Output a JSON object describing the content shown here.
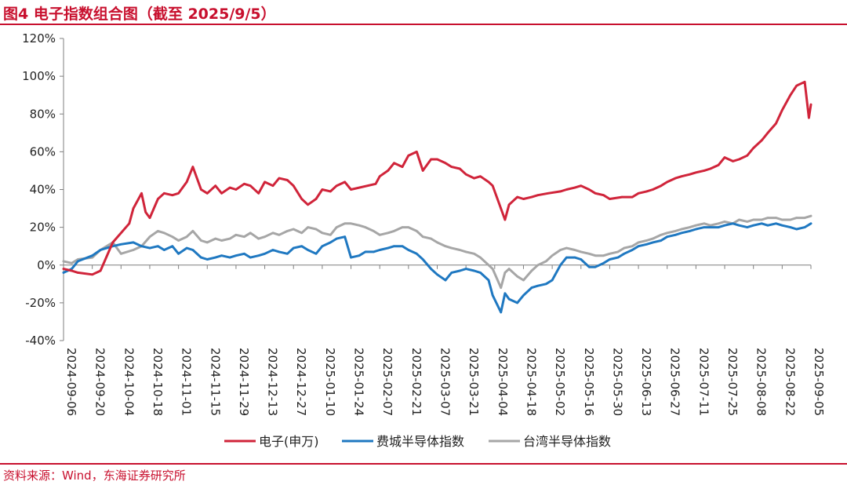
{
  "figure": {
    "title": "图4  电子指数组合图（截至 2025/9/5）",
    "source": "资料来源：Wind，东海证券研究所"
  },
  "colors": {
    "accent": "#c8102e",
    "electronics": "#d0243a",
    "sox": "#1f78c1",
    "taiwan": "#a6a6a6"
  },
  "chart_data": {
    "type": "line",
    "title": "电子指数组合图",
    "xlabel": "",
    "ylabel": "",
    "ylim": [
      -40,
      120
    ],
    "y_ticks": [
      "120%",
      "100%",
      "80%",
      "60%",
      "40%",
      "20%",
      "0%",
      "-20%",
      "-40%"
    ],
    "y_tick_values": [
      120,
      100,
      80,
      60,
      40,
      20,
      0,
      -20,
      -40
    ],
    "x_ticks": [
      "2024-09-06",
      "2024-09-20",
      "2024-10-04",
      "2024-10-18",
      "2024-11-01",
      "2024-11-15",
      "2024-11-29",
      "2024-12-13",
      "2024-12-27",
      "2025-01-10",
      "2025-01-24",
      "2025-02-07",
      "2025-02-21",
      "2025-03-07",
      "2025-03-21",
      "2025-04-04",
      "2025-04-18",
      "2025-05-02",
      "2025-05-16",
      "2025-05-30",
      "2025-06-13",
      "2025-06-27",
      "2025-07-11",
      "2025-07-25",
      "2025-08-08",
      "2025-08-22",
      "2025-09-05"
    ],
    "grid": false,
    "legend_position": "bottom",
    "series": [
      {
        "name": "电子(申万)",
        "color": "#d0243a",
        "x": [
          "2024-09-06",
          "2024-09-10",
          "2024-09-13",
          "2024-09-20",
          "2024-09-24",
          "2024-09-30",
          "2024-10-08",
          "2024-10-10",
          "2024-10-14",
          "2024-10-16",
          "2024-10-18",
          "2024-10-22",
          "2024-10-25",
          "2024-10-29",
          "2024-11-01",
          "2024-11-05",
          "2024-11-08",
          "2024-11-12",
          "2024-11-15",
          "2024-11-19",
          "2024-11-22",
          "2024-11-26",
          "2024-11-29",
          "2024-12-03",
          "2024-12-06",
          "2024-12-10",
          "2024-12-13",
          "2024-12-17",
          "2024-12-20",
          "2024-12-24",
          "2024-12-27",
          "2024-12-31",
          "2025-01-03",
          "2025-01-07",
          "2025-01-10",
          "2025-01-14",
          "2025-01-17",
          "2025-01-21",
          "2025-01-24",
          "2025-02-05",
          "2025-02-07",
          "2025-02-11",
          "2025-02-14",
          "2025-02-18",
          "2025-02-21",
          "2025-02-25",
          "2025-02-28",
          "2025-03-04",
          "2025-03-07",
          "2025-03-11",
          "2025-03-14",
          "2025-03-18",
          "2025-03-21",
          "2025-03-25",
          "2025-03-28",
          "2025-04-01",
          "2025-04-03",
          "2025-04-07",
          "2025-04-09",
          "2025-04-11",
          "2025-04-15",
          "2025-04-18",
          "2025-04-22",
          "2025-04-25",
          "2025-04-30",
          "2025-05-06",
          "2025-05-09",
          "2025-05-13",
          "2025-05-16",
          "2025-05-20",
          "2025-05-23",
          "2025-05-27",
          "2025-05-30",
          "2025-06-05",
          "2025-06-10",
          "2025-06-13",
          "2025-06-17",
          "2025-06-20",
          "2025-06-24",
          "2025-06-27",
          "2025-07-01",
          "2025-07-04",
          "2025-07-08",
          "2025-07-11",
          "2025-07-15",
          "2025-07-18",
          "2025-07-22",
          "2025-07-25",
          "2025-07-29",
          "2025-08-01",
          "2025-08-05",
          "2025-08-08",
          "2025-08-12",
          "2025-08-15",
          "2025-08-19",
          "2025-08-22",
          "2025-08-26",
          "2025-08-29",
          "2025-09-02",
          "2025-09-04",
          "2025-09-05"
        ],
        "values": [
          -2,
          -3,
          -4,
          -5,
          -3,
          12,
          22,
          30,
          38,
          28,
          25,
          35,
          38,
          37,
          38,
          44,
          52,
          40,
          38,
          42,
          38,
          41,
          40,
          43,
          42,
          38,
          44,
          42,
          46,
          45,
          42,
          35,
          32,
          35,
          40,
          39,
          42,
          44,
          40,
          43,
          47,
          50,
          54,
          52,
          58,
          60,
          50,
          56,
          56,
          54,
          52,
          51,
          48,
          46,
          47,
          44,
          42,
          30,
          24,
          32,
          36,
          35,
          36,
          37,
          38,
          39,
          40,
          41,
          42,
          40,
          38,
          37,
          35,
          36,
          36,
          38,
          39,
          40,
          42,
          44,
          46,
          47,
          48,
          49,
          50,
          51,
          53,
          57,
          55,
          56,
          58,
          62,
          66,
          70,
          75,
          82,
          90,
          95,
          97,
          78,
          85
        ]
      },
      {
        "name": "费城半导体指数",
        "color": "#1f78c1",
        "x": [
          "2024-09-06",
          "2024-09-10",
          "2024-09-13",
          "2024-09-20",
          "2024-09-24",
          "2024-09-30",
          "2024-10-04",
          "2024-10-10",
          "2024-10-14",
          "2024-10-18",
          "2024-10-22",
          "2024-10-25",
          "2024-10-29",
          "2024-11-01",
          "2024-11-05",
          "2024-11-08",
          "2024-11-12",
          "2024-11-15",
          "2024-11-19",
          "2024-11-22",
          "2024-11-26",
          "2024-11-29",
          "2024-12-03",
          "2024-12-06",
          "2024-12-10",
          "2024-12-13",
          "2024-12-17",
          "2024-12-20",
          "2024-12-24",
          "2024-12-27",
          "2024-12-31",
          "2025-01-03",
          "2025-01-07",
          "2025-01-10",
          "2025-01-14",
          "2025-01-17",
          "2025-01-21",
          "2025-01-24",
          "2025-01-28",
          "2025-01-31",
          "2025-02-04",
          "2025-02-07",
          "2025-02-11",
          "2025-02-14",
          "2025-02-18",
          "2025-02-21",
          "2025-02-25",
          "2025-02-28",
          "2025-03-04",
          "2025-03-07",
          "2025-03-11",
          "2025-03-14",
          "2025-03-18",
          "2025-03-21",
          "2025-03-25",
          "2025-03-28",
          "2025-04-01",
          "2025-04-03",
          "2025-04-07",
          "2025-04-09",
          "2025-04-11",
          "2025-04-15",
          "2025-04-18",
          "2025-04-22",
          "2025-04-25",
          "2025-04-29",
          "2025-05-02",
          "2025-05-06",
          "2025-05-09",
          "2025-05-13",
          "2025-05-16",
          "2025-05-20",
          "2025-05-23",
          "2025-05-27",
          "2025-05-30",
          "2025-06-03",
          "2025-06-06",
          "2025-06-10",
          "2025-06-13",
          "2025-06-17",
          "2025-06-20",
          "2025-06-24",
          "2025-06-27",
          "2025-07-01",
          "2025-07-04",
          "2025-07-08",
          "2025-07-11",
          "2025-07-15",
          "2025-07-18",
          "2025-07-22",
          "2025-07-25",
          "2025-07-29",
          "2025-08-01",
          "2025-08-05",
          "2025-08-08",
          "2025-08-12",
          "2025-08-15",
          "2025-08-19",
          "2025-08-22",
          "2025-08-26",
          "2025-08-29",
          "2025-09-02",
          "2025-09-05"
        ],
        "values": [
          -4,
          -2,
          2,
          5,
          8,
          10,
          11,
          12,
          10,
          9,
          10,
          8,
          10,
          6,
          9,
          8,
          4,
          3,
          4,
          5,
          4,
          5,
          6,
          4,
          5,
          6,
          8,
          7,
          6,
          9,
          10,
          8,
          6,
          10,
          12,
          14,
          15,
          4,
          5,
          7,
          7,
          8,
          9,
          10,
          10,
          8,
          6,
          3,
          -2,
          -5,
          -8,
          -4,
          -3,
          -2,
          -3,
          -4,
          -8,
          -16,
          -25,
          -15,
          -18,
          -20,
          -16,
          -12,
          -11,
          -10,
          -8,
          0,
          4,
          4,
          3,
          -1,
          -1,
          1,
          3,
          4,
          6,
          8,
          10,
          11,
          12,
          13,
          15,
          16,
          17,
          18,
          19,
          20,
          20,
          20,
          21,
          22,
          21,
          20,
          21,
          22,
          21,
          22,
          21,
          20,
          19,
          20,
          22
        ]
      },
      {
        "name": "台湾半导体指数",
        "color": "#a6a6a6",
        "x": [
          "2024-09-06",
          "2024-09-10",
          "2024-09-13",
          "2024-09-20",
          "2024-09-24",
          "2024-09-30",
          "2024-10-04",
          "2024-10-10",
          "2024-10-14",
          "2024-10-18",
          "2024-10-22",
          "2024-10-25",
          "2024-10-29",
          "2024-11-01",
          "2024-11-05",
          "2024-11-08",
          "2024-11-12",
          "2024-11-15",
          "2024-11-19",
          "2024-11-22",
          "2024-11-26",
          "2024-11-29",
          "2024-12-03",
          "2024-12-06",
          "2024-12-10",
          "2024-12-13",
          "2024-12-17",
          "2024-12-20",
          "2024-12-24",
          "2024-12-27",
          "2024-12-31",
          "2025-01-03",
          "2025-01-07",
          "2025-01-10",
          "2025-01-14",
          "2025-01-17",
          "2025-01-21",
          "2025-01-24",
          "2025-01-28",
          "2025-01-31",
          "2025-02-04",
          "2025-02-07",
          "2025-02-11",
          "2025-02-14",
          "2025-02-18",
          "2025-02-21",
          "2025-02-25",
          "2025-02-28",
          "2025-03-04",
          "2025-03-07",
          "2025-03-11",
          "2025-03-14",
          "2025-03-18",
          "2025-03-21",
          "2025-03-25",
          "2025-03-28",
          "2025-04-01",
          "2025-04-03",
          "2025-04-07",
          "2025-04-09",
          "2025-04-11",
          "2025-04-15",
          "2025-04-18",
          "2025-04-22",
          "2025-04-25",
          "2025-04-29",
          "2025-05-02",
          "2025-05-06",
          "2025-05-09",
          "2025-05-13",
          "2025-05-16",
          "2025-05-20",
          "2025-05-23",
          "2025-05-27",
          "2025-05-30",
          "2025-06-03",
          "2025-06-06",
          "2025-06-10",
          "2025-06-13",
          "2025-06-17",
          "2025-06-20",
          "2025-06-24",
          "2025-06-27",
          "2025-07-01",
          "2025-07-04",
          "2025-07-08",
          "2025-07-11",
          "2025-07-15",
          "2025-07-18",
          "2025-07-22",
          "2025-07-25",
          "2025-07-29",
          "2025-08-01",
          "2025-08-05",
          "2025-08-08",
          "2025-08-12",
          "2025-08-15",
          "2025-08-19",
          "2025-08-22",
          "2025-08-26",
          "2025-08-29",
          "2025-09-02",
          "2025-09-05"
        ],
        "values": [
          2,
          1,
          3,
          4,
          8,
          12,
          6,
          8,
          10,
          15,
          18,
          17,
          15,
          13,
          15,
          18,
          13,
          12,
          14,
          13,
          14,
          16,
          15,
          17,
          14,
          15,
          17,
          16,
          18,
          19,
          17,
          20,
          19,
          17,
          16,
          20,
          22,
          22,
          21,
          20,
          18,
          16,
          17,
          18,
          20,
          20,
          18,
          15,
          14,
          12,
          10,
          9,
          8,
          7,
          6,
          4,
          0,
          -2,
          -12,
          -4,
          -2,
          -6,
          -8,
          -3,
          0,
          2,
          5,
          8,
          9,
          8,
          7,
          6,
          5,
          5,
          6,
          7,
          9,
          10,
          12,
          13,
          14,
          16,
          17,
          18,
          19,
          20,
          21,
          22,
          21,
          22,
          23,
          22,
          24,
          23,
          24,
          24,
          25,
          25,
          24,
          24,
          25,
          25,
          26
        ]
      }
    ]
  }
}
